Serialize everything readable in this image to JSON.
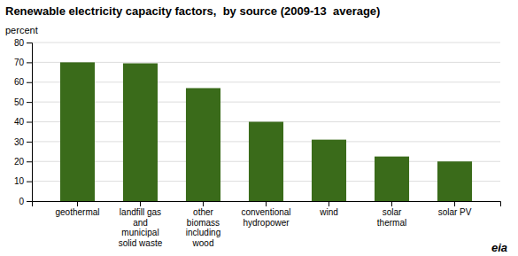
{
  "chart_data": {
    "type": "bar",
    "title": "Renewable electricity capacity factors,  by source (2009-13  average)",
    "ylabel": "percent",
    "annotations": [
      "eia"
    ],
    "categories": [
      "geothermal",
      "landfill gas\nand\nmunicipal\nsolid waste",
      "other\nbiomass\nincluding\nwood",
      "conventional\nhydropower",
      "wind",
      "solar\nthermal",
      "solar PV"
    ],
    "values": [
      70,
      69.5,
      57,
      40,
      31,
      22.5,
      20
    ],
    "color": "#3a6b1a",
    "ylim": [
      0,
      80
    ],
    "yticks": [
      0,
      10,
      20,
      30,
      40,
      50,
      60,
      70,
      80
    ],
    "grid": true
  }
}
